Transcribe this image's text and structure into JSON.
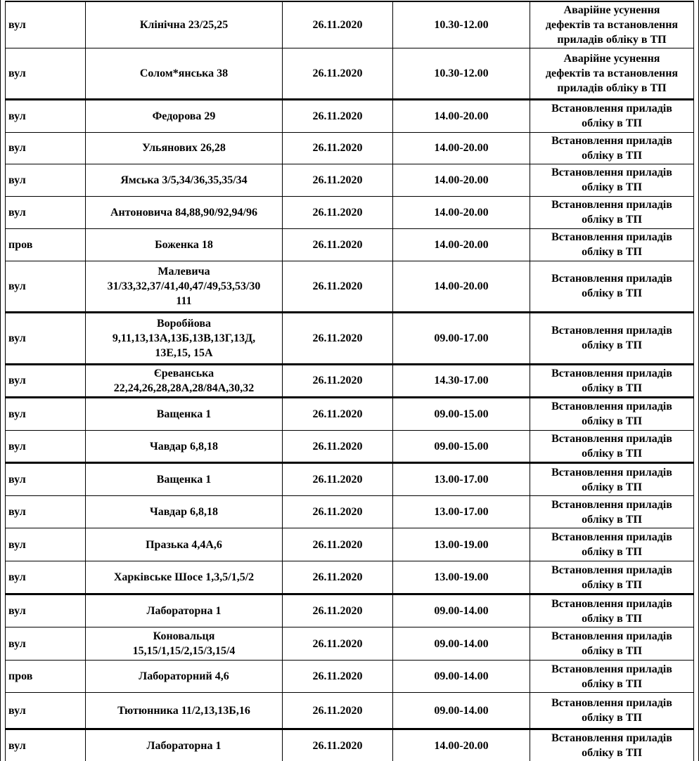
{
  "colors": {
    "border": "#000000",
    "text": "#000000",
    "background": "#ffffff"
  },
  "table": {
    "rows": [
      {
        "type": "вул",
        "address": "Клінічна 23/25,25",
        "date": "26.11.2020",
        "time": "10.30-12.00",
        "work": "Аварійне усунення\nдефектів та встановлення\nприладів обліку в ТП"
      },
      {
        "type": "вул",
        "address": "Солом*янська 38",
        "date": "26.11.2020",
        "time": "10.30-12.00",
        "work": "Аварійне усунення\nдефектів та встановлення\nприладів обліку в ТП"
      },
      {
        "type": "вул",
        "address": "Федорова 29",
        "date": "26.11.2020",
        "time": "14.00-20.00",
        "work": "Встановлення приладів\nобліку в ТП"
      },
      {
        "type": "вул",
        "address": "Ульянових 26,28",
        "date": "26.11.2020",
        "time": "14.00-20.00",
        "work": "Встановлення приладів\nобліку в ТП"
      },
      {
        "type": "вул",
        "address": "Ямська 3/5,34/36,35,35/34",
        "date": "26.11.2020",
        "time": "14.00-20.00",
        "work": "Встановлення приладів\nобліку в ТП"
      },
      {
        "type": "вул",
        "address": "Антоновича 84,88,90/92,94/96",
        "date": "26.11.2020",
        "time": "14.00-20.00",
        "work": "Встановлення приладів\nобліку в ТП"
      },
      {
        "type": "пров",
        "address": "Боженка 18",
        "date": "26.11.2020",
        "time": "14.00-20.00",
        "work": "Встановлення приладів\nобліку в ТП"
      },
      {
        "type": "вул",
        "address": "Малевича\n31/33,32,37/41,40,47/49,53,53/30\n111",
        "date": "26.11.2020",
        "time": "14.00-20.00",
        "work": "Встановлення приладів\nобліку в ТП"
      },
      {
        "type": "вул",
        "address": "Воробйова\n9,11,13,13А,13Б,13В,13Г,13Д,\n13Е,15, 15А",
        "date": "26.11.2020",
        "time": "09.00-17.00",
        "work": "Встановлення приладів\nобліку в ТП"
      },
      {
        "type": "вул",
        "address": "Єреванська\n22,24,26,28,28А,28/84А,30,32",
        "date": "26.11.2020",
        "time": "14.30-17.00",
        "work": "Встановлення приладів\nобліку в ТП"
      },
      {
        "type": "вул",
        "address": "Ващенка 1",
        "date": "26.11.2020",
        "time": "09.00-15.00",
        "work": "Встановлення приладів\nобліку в ТП"
      },
      {
        "type": "вул",
        "address": "Чавдар 6,8,18",
        "date": "26.11.2020",
        "time": "09.00-15.00",
        "work": "Встановлення приладів\nобліку в ТП"
      },
      {
        "type": "вул",
        "address": "Ващенка 1",
        "date": "26.11.2020",
        "time": "13.00-17.00",
        "work": "Встановлення приладів\nобліку в ТП"
      },
      {
        "type": "вул",
        "address": "Чавдар 6,8,18",
        "date": "26.11.2020",
        "time": "13.00-17.00",
        "work": "Встановлення приладів\nобліку в ТП"
      },
      {
        "type": "вул",
        "address": "Празька 4,4А,6",
        "date": "26.11.2020",
        "time": "13.00-19.00",
        "work": "Встановлення приладів\nобліку в ТП"
      },
      {
        "type": "вул",
        "address": "Харківське Шосе 1,3,5/1,5/2",
        "date": "26.11.2020",
        "time": "13.00-19.00",
        "work": "Встановлення приладів\nобліку в ТП"
      },
      {
        "type": "вул",
        "address": "Лабораторна 1",
        "date": "26.11.2020",
        "time": "09.00-14.00",
        "work": "Встановлення приладів\nобліку в ТП"
      },
      {
        "type": "вул",
        "address": "Коновальця\n15,15/1,15/2,15/3,15/4",
        "date": "26.11.2020",
        "time": "09.00-14.00",
        "work": "Встановлення приладів\nобліку в ТП"
      },
      {
        "type": "пров",
        "address": "Лабораторний 4,6",
        "date": "26.11.2020",
        "time": "09.00-14.00",
        "work": "Встановлення приладів\nобліку в ТП"
      },
      {
        "type": "вул",
        "address": "Тютюнника 11/2,13,13Б,16",
        "date": "26.11.2020",
        "time": "09.00-14.00",
        "work": "Встановлення приладів\nобліку в ТП"
      },
      {
        "type": "вул",
        "address": "Лабораторна 1",
        "date": "26.11.2020",
        "time": "14.00-20.00",
        "work": "Встановлення приладів\nобліку в ТП"
      }
    ]
  }
}
